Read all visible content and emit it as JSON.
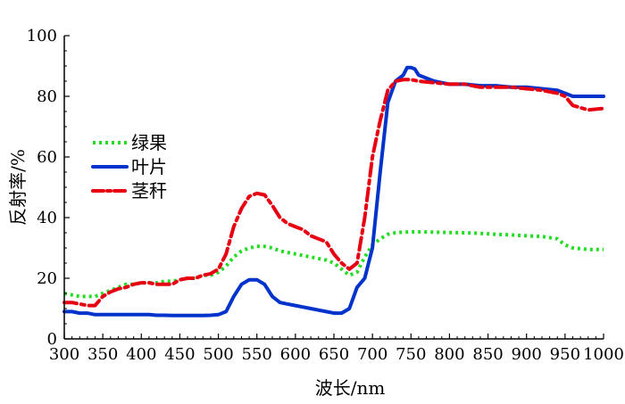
{
  "chart_data": {
    "type": "line",
    "xlabel": "波长/nm",
    "ylabel": "反射率/%",
    "xlim": [
      300,
      1000
    ],
    "ylim": [
      0,
      100
    ],
    "xticks": [
      "300",
      "350",
      "400",
      "450",
      "500",
      "550",
      "600",
      "650",
      "700",
      "750",
      "800",
      "850",
      "900",
      "950",
      "1000"
    ],
    "yticks": [
      "0",
      "20",
      "40",
      "60",
      "80",
      "100"
    ],
    "legend_position": "left-middle",
    "grid": false,
    "series": [
      {
        "name": "绿果",
        "color": "#22dd22",
        "style": "dotted",
        "x": [
          300,
          310,
          320,
          330,
          340,
          350,
          360,
          370,
          380,
          390,
          400,
          410,
          420,
          430,
          440,
          450,
          460,
          470,
          480,
          490,
          500,
          510,
          520,
          530,
          540,
          550,
          560,
          570,
          580,
          590,
          600,
          610,
          620,
          630,
          640,
          650,
          660,
          670,
          680,
          690,
          700,
          710,
          720,
          730,
          740,
          750,
          760,
          780,
          800,
          820,
          840,
          860,
          880,
          900,
          920,
          940,
          950,
          960,
          980,
          1000
        ],
        "y": [
          15,
          14.5,
          14,
          14,
          14,
          15,
          16,
          17,
          18,
          18,
          18.5,
          18.5,
          18.5,
          19,
          19,
          19.5,
          20,
          20,
          21,
          21,
          22,
          24,
          27,
          29,
          30,
          30.5,
          30.5,
          30,
          29,
          28.5,
          28,
          27.5,
          27,
          26.5,
          26,
          25,
          23,
          21,
          22,
          27,
          31,
          33,
          34.5,
          35,
          35.2,
          35.3,
          35.3,
          35.2,
          35.1,
          35,
          34.8,
          34.5,
          34.3,
          34,
          33.8,
          33,
          31,
          30,
          29.5,
          29.5
        ]
      },
      {
        "name": "叶片",
        "color": "#0033cc",
        "style": "solid",
        "x": [
          300,
          310,
          320,
          330,
          340,
          350,
          360,
          370,
          380,
          390,
          400,
          410,
          420,
          430,
          440,
          450,
          460,
          470,
          480,
          490,
          500,
          510,
          520,
          530,
          540,
          550,
          560,
          570,
          580,
          590,
          600,
          610,
          620,
          630,
          640,
          650,
          660,
          670,
          680,
          690,
          700,
          710,
          720,
          730,
          740,
          745,
          750,
          755,
          760,
          770,
          780,
          790,
          800,
          820,
          840,
          860,
          880,
          900,
          920,
          940,
          950,
          960,
          980,
          1000
        ],
        "y": [
          9,
          9,
          8.5,
          8.5,
          8,
          8,
          8,
          8,
          8,
          8,
          8,
          8,
          7.8,
          7.8,
          7.7,
          7.7,
          7.7,
          7.7,
          7.7,
          7.8,
          8,
          9,
          14,
          18,
          19.5,
          19.5,
          18,
          14,
          12,
          11.5,
          11,
          10.5,
          10,
          9.5,
          9,
          8.5,
          8.5,
          10,
          17,
          20,
          30,
          55,
          78,
          85,
          87,
          89.5,
          89.5,
          89,
          87,
          86,
          85,
          84.5,
          84,
          84,
          83.5,
          83.5,
          83,
          83,
          82.5,
          82,
          81,
          80,
          80,
          80
        ]
      },
      {
        "name": "茎秆",
        "color": "#e60012",
        "style": "dashdot",
        "x": [
          300,
          310,
          320,
          330,
          340,
          350,
          360,
          370,
          380,
          390,
          400,
          410,
          420,
          430,
          440,
          450,
          460,
          470,
          480,
          490,
          500,
          510,
          520,
          530,
          540,
          550,
          560,
          570,
          580,
          590,
          600,
          610,
          620,
          630,
          640,
          650,
          660,
          670,
          680,
          690,
          700,
          710,
          720,
          730,
          740,
          750,
          760,
          780,
          800,
          820,
          840,
          860,
          880,
          900,
          920,
          940,
          950,
          960,
          980,
          1000
        ],
        "y": [
          12,
          12,
          11.5,
          11,
          11,
          14,
          15.5,
          16.5,
          17,
          18,
          18.5,
          18.5,
          18,
          18,
          18,
          19.5,
          20,
          20,
          21,
          21.5,
          23,
          28,
          37,
          43,
          47,
          48,
          47.5,
          44,
          40,
          38,
          37,
          36,
          34,
          33,
          32,
          28,
          25,
          23,
          25,
          40,
          60,
          72,
          82,
          85,
          85.5,
          85.5,
          85,
          84.5,
          84,
          84,
          83,
          83,
          83,
          82.5,
          82,
          81,
          80,
          77,
          75.5,
          76
        ]
      }
    ]
  }
}
